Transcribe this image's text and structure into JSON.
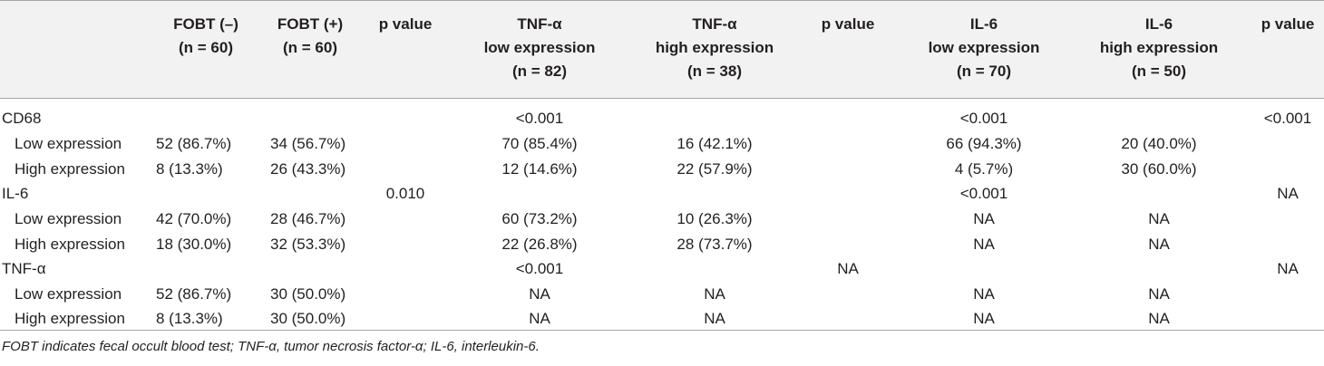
{
  "headers": [
    {
      "line1": "FOBT (–)",
      "line2": "(n = 60)",
      "line3": ""
    },
    {
      "line1": "FOBT (+)",
      "line2": "(n = 60)",
      "line3": ""
    },
    {
      "line1": "p value",
      "line2": "",
      "line3": ""
    },
    {
      "line1": "TNF-α",
      "line2": "low expression",
      "line3": "(n = 82)"
    },
    {
      "line1": "TNF-α",
      "line2": "high expression",
      "line3": "(n = 38)"
    },
    {
      "line1": "p value",
      "line2": "",
      "line3": ""
    },
    {
      "line1": "IL-6",
      "line2": "low expression",
      "line3": "(n = 70)"
    },
    {
      "line1": "IL-6",
      "line2": "high expression",
      "line3": "(n = 50)"
    },
    {
      "line1": "p value",
      "line2": "",
      "line3": ""
    }
  ],
  "rows": [
    {
      "label": "CD68",
      "cells": [
        "",
        "",
        "",
        "<0.001",
        "",
        "",
        "<0.001",
        "",
        "<0.001"
      ]
    },
    {
      "label": "Low expression",
      "cells": [
        "52 (86.7%)",
        "34 (56.7%)",
        "",
        "70 (85.4%)",
        "16 (42.1%)",
        "",
        "66 (94.3%)",
        "20 (40.0%)",
        ""
      ]
    },
    {
      "label": "High expression",
      "cells": [
        "8 (13.3%)",
        "26 (43.3%)",
        "",
        "12 (14.6%)",
        "22 (57.9%)",
        "",
        "4 (5.7%)",
        "30 (60.0%)",
        ""
      ]
    },
    {
      "label": "IL-6",
      "cells": [
        "",
        "",
        "0.010",
        "",
        "",
        "",
        "<0.001",
        "",
        "NA"
      ]
    },
    {
      "label": "Low expression",
      "cells": [
        "42 (70.0%)",
        "28 (46.7%)",
        "",
        "60 (73.2%)",
        "10 (26.3%)",
        "",
        "NA",
        "NA",
        ""
      ]
    },
    {
      "label": "High expression",
      "cells": [
        "18 (30.0%)",
        "32 (53.3%)",
        "",
        "22 (26.8%)",
        "28 (73.7%)",
        "",
        "NA",
        "NA",
        ""
      ]
    },
    {
      "label": "TNF-α",
      "cells": [
        "",
        "",
        "",
        "<0.001",
        "",
        "NA",
        "",
        "",
        "NA"
      ]
    },
    {
      "label": "Low expression",
      "cells": [
        "52 (86.7%)",
        "30 (50.0%)",
        "",
        "NA",
        "NA",
        "",
        "NA",
        "NA",
        ""
      ]
    },
    {
      "label": "High expression",
      "cells": [
        "8 (13.3%)",
        "30 (50.0%)",
        "",
        "NA",
        "NA",
        "",
        "NA",
        "NA",
        ""
      ]
    }
  ],
  "footnote": "FOBT indicates fecal occult blood test; TNF-α, tumor necrosis factor-α; IL-6, interleukin-6."
}
